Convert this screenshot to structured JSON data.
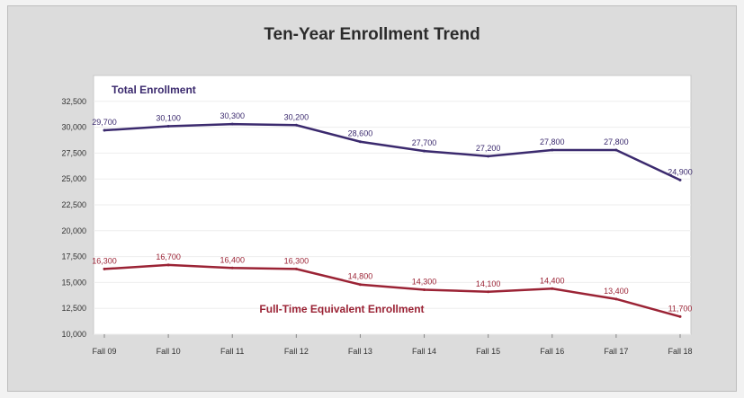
{
  "chart_data": {
    "type": "line",
    "title": "Ten-Year Enrollment Trend",
    "xlabel": "",
    "ylabel": "",
    "categories": [
      "Fall 09",
      "Fall 10",
      "Fall 11",
      "Fall 12",
      "Fall 13",
      "Fall 14",
      "Fall 15",
      "Fall 16",
      "Fall 17",
      "Fall 18"
    ],
    "ylim": [
      10000,
      35000
    ],
    "yticks": [
      10000,
      12500,
      15000,
      17500,
      20000,
      22500,
      25000,
      27500,
      30000,
      32500
    ],
    "ytick_labels": [
      "10,000",
      "12,500",
      "15,000",
      "17,500",
      "20,000",
      "22,500",
      "25,000",
      "27,500",
      "30,000",
      "32,500"
    ],
    "grid": true,
    "legend": "inline",
    "series": [
      {
        "name": "Total Enrollment",
        "color": "#3b2a6e",
        "values": [
          29700,
          30100,
          30300,
          30200,
          28600,
          27700,
          27200,
          27800,
          27800,
          24900
        ],
        "labels": [
          "29,700",
          "30,100",
          "30,300",
          "30,200",
          "28,600",
          "27,700",
          "27,200",
          "27,800",
          "27,800",
          "24,900"
        ]
      },
      {
        "name": "Full-Time Equivalent Enrollment",
        "color": "#9b2335",
        "values": [
          16300,
          16700,
          16400,
          16300,
          14800,
          14300,
          14100,
          14400,
          13400,
          11700
        ],
        "labels": [
          "16,300",
          "16,700",
          "16,400",
          "16,300",
          "14,800",
          "14,300",
          "14,100",
          "14,400",
          "13,400",
          "11,700"
        ]
      }
    ]
  }
}
